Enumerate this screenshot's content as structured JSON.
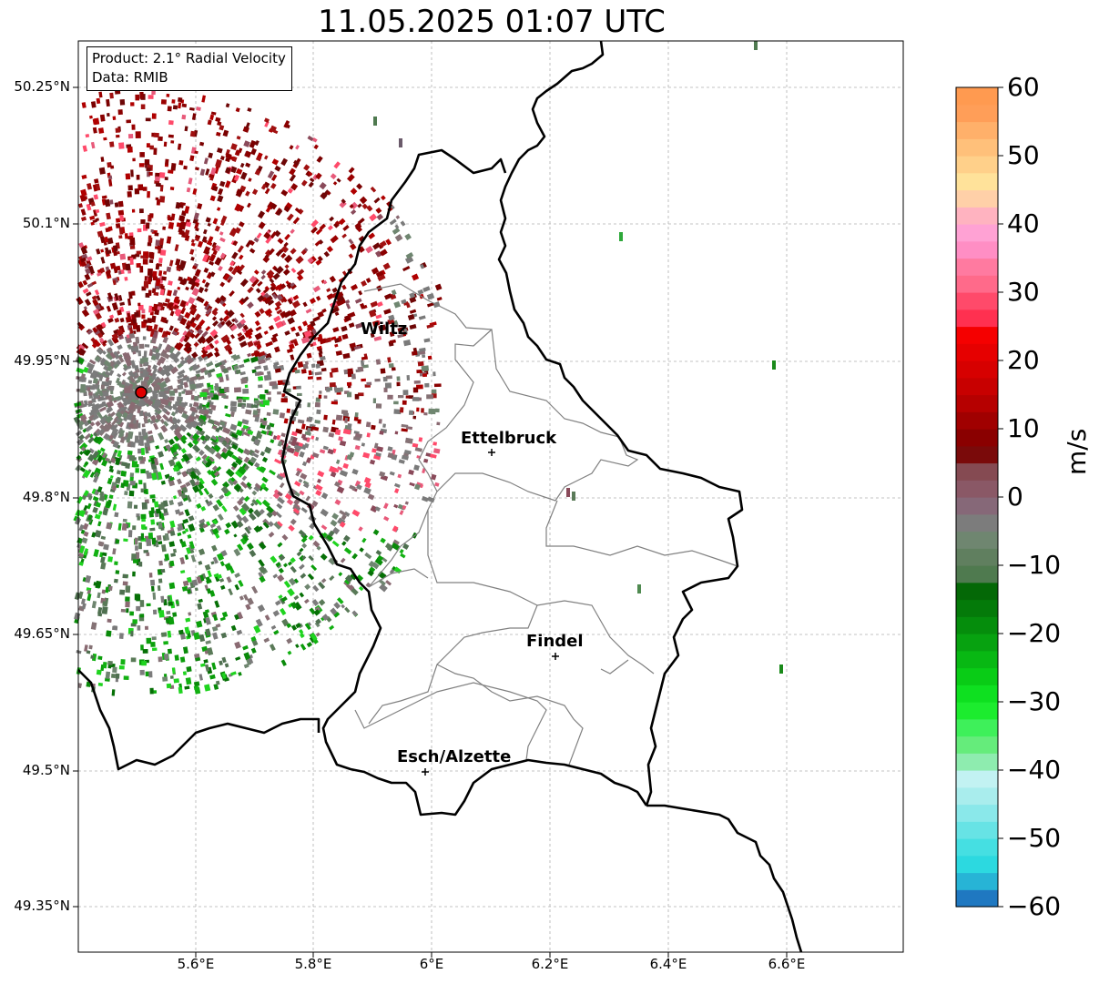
{
  "title": "11.05.2025 01:07 UTC",
  "info": {
    "line1": "Product: 2.1° Radial Velocity",
    "line2": "Data: RMIB"
  },
  "y_ticks": [
    "50.25°N",
    "50.1°N",
    "49.95°N",
    "49.8°N",
    "49.65°N",
    "49.5°N",
    "49.35°N"
  ],
  "x_ticks": [
    "5.6°E",
    "5.8°E",
    "6°E",
    "6.2°E",
    "6.4°E",
    "6.6°E"
  ],
  "colorbar": {
    "unit": "m/s",
    "ticks": [
      "60",
      "50",
      "40",
      "30",
      "20",
      "10",
      "0",
      "−10",
      "−20",
      "−30",
      "−40",
      "−50",
      "−60"
    ],
    "range": [
      -60,
      60
    ],
    "colors": [
      "#1f78c1",
      "#27b4d6",
      "#2cd9e0",
      "#45dfe2",
      "#67e3e5",
      "#8ae8ea",
      "#a9eded",
      "#c2f2f2",
      "#8eecaf",
      "#65ec7b",
      "#3ef05a",
      "#1cec2e",
      "#0ee020",
      "#09cc16",
      "#08b813",
      "#07a210",
      "#058d0c",
      "#047a09",
      "#046806",
      "#4f7a4f",
      "#607f5f",
      "#6f8670",
      "#7c7c7c",
      "#866878",
      "#8a5866",
      "#854a52",
      "#7a0a0a",
      "#8a0000",
      "#a00000",
      "#b60000",
      "#c80000",
      "#d70000",
      "#e60000",
      "#f50000",
      "#ff3050",
      "#ff4a6a",
      "#ff6a8a",
      "#ff7aa0",
      "#ff8ec4",
      "#ffa2d4",
      "#ffb3c0",
      "#ffd0a8",
      "#ffe29a",
      "#ffd08a",
      "#ffc07a",
      "#ffb06a",
      "#ff9e58",
      "#ff9a50"
    ]
  },
  "cities": [
    {
      "name": "Wiltz"
    },
    {
      "name": "Ettelbruck"
    },
    {
      "name": "Findel"
    },
    {
      "name": "Esch/Alzette"
    }
  ]
}
